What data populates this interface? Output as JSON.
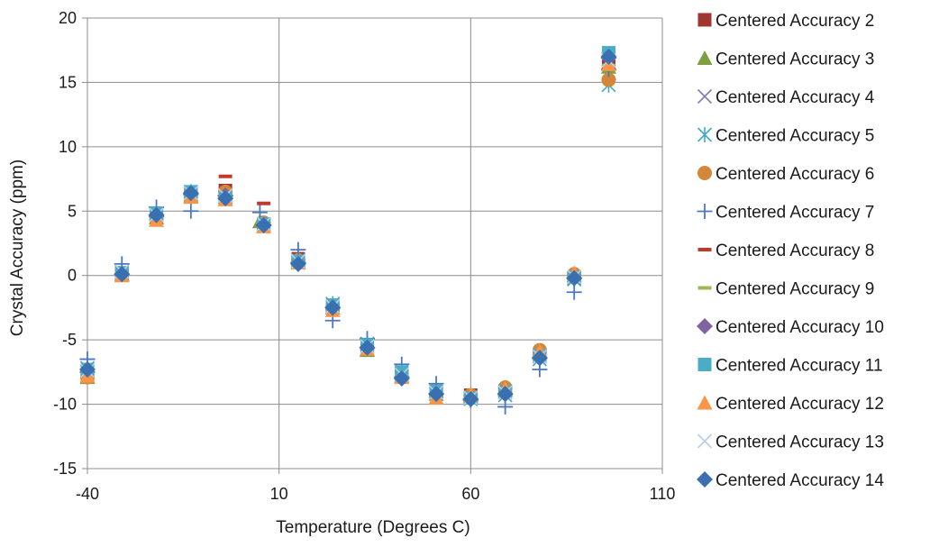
{
  "chart_data": {
    "type": "scatter",
    "xlabel": "Temperature (Degrees C)",
    "ylabel": "Crystal Accuracy (ppm)",
    "xlim": [
      -40,
      110
    ],
    "ylim": [
      -15,
      20
    ],
    "xticks": [
      -40,
      10,
      60,
      110
    ],
    "yticks": [
      -15,
      -10,
      -5,
      0,
      5,
      10,
      15,
      20
    ],
    "grid": "vertical and horizontal major gridlines",
    "legend_position": "right",
    "series": [
      {
        "name": "Centered Accuracy 2",
        "marker": "square",
        "color": "#a0362f",
        "x": [
          -40,
          -31,
          -22,
          -13,
          -4,
          6,
          15,
          24,
          33,
          42,
          51,
          60,
          69,
          78,
          87,
          96
        ],
        "y": [
          -7.8,
          0.2,
          4.5,
          6.3,
          6.6,
          4.0,
          1.3,
          -2.4,
          -5.5,
          -7.6,
          -9.0,
          -9.3,
          -9.0,
          -6.2,
          -0.1,
          16.5
        ]
      },
      {
        "name": "Centered Accuracy 3",
        "marker": "triangle",
        "color": "#7f9f3f",
        "x": [
          -40,
          -31,
          -22,
          -13,
          -4,
          5,
          15,
          24,
          33,
          42,
          51,
          60,
          69,
          78,
          87,
          96
        ],
        "y": [
          -7.9,
          0.1,
          4.5,
          6.2,
          6.4,
          4.2,
          1.1,
          -2.5,
          -5.8,
          -7.8,
          -9.2,
          -9.4,
          -8.9,
          -6.0,
          0.0,
          16.2
        ]
      },
      {
        "name": "Centered Accuracy 4",
        "marker": "x",
        "color": "#8877b5",
        "x": [
          -40,
          -31,
          -22,
          -13,
          -4,
          6,
          15,
          24,
          33,
          42,
          51,
          60,
          69,
          78,
          87,
          96
        ],
        "y": [
          -7.5,
          0.3,
          4.7,
          6.4,
          6.1,
          4.0,
          1.0,
          -2.4,
          -5.5,
          -7.7,
          -9.1,
          -9.5,
          -9.1,
          -6.3,
          -0.2,
          16.8
        ]
      },
      {
        "name": "Centered Accuracy 5",
        "marker": "asterisk",
        "color": "#44a8c4",
        "x": [
          -40,
          -31,
          -22,
          -13,
          -4,
          6,
          15,
          24,
          33,
          42,
          51,
          60,
          69,
          78,
          87,
          96
        ],
        "y": [
          -7.2,
          0.2,
          4.8,
          6.5,
          6.0,
          3.9,
          1.2,
          -2.2,
          -5.3,
          -7.4,
          -9.2,
          -9.6,
          -9.3,
          -6.5,
          -0.3,
          14.8
        ]
      },
      {
        "name": "Centered Accuracy 6",
        "marker": "circle",
        "color": "#d3873a",
        "x": [
          -40,
          -31,
          -22,
          -13,
          -4,
          6,
          15,
          24,
          33,
          42,
          51,
          60,
          69,
          78,
          87,
          96
        ],
        "y": [
          -7.9,
          0.1,
          4.4,
          6.2,
          6.5,
          4.1,
          1.2,
          -2.6,
          -5.7,
          -7.9,
          -9.4,
          -9.3,
          -8.7,
          -5.8,
          0.1,
          15.2
        ]
      },
      {
        "name": "Centered Accuracy 7",
        "marker": "plus",
        "color": "#4a78c4",
        "x": [
          -40,
          -31,
          -22,
          -13,
          -4,
          5,
          15,
          24,
          33,
          42,
          51,
          60,
          69,
          78,
          87,
          96
        ],
        "y": [
          -6.5,
          0.9,
          5.3,
          5.0,
          6.2,
          4.9,
          2.0,
          -3.5,
          -4.9,
          -6.9,
          -8.4,
          -9.7,
          -10.2,
          -7.3,
          -1.3,
          16.0
        ]
      },
      {
        "name": "Centered Accuracy 8",
        "marker": "dash",
        "color": "#c0392b",
        "x": [
          -40,
          -31,
          -22,
          -13,
          -4,
          6,
          15,
          24,
          33,
          42,
          51,
          60,
          69,
          78,
          87,
          96
        ],
        "y": [
          -7.6,
          0.4,
          4.9,
          6.6,
          7.7,
          5.6,
          1.4,
          -2.3,
          -5.4,
          -7.5,
          -9.0,
          -9.4,
          -9.0,
          -6.1,
          0.0,
          17.2
        ]
      },
      {
        "name": "Centered Accuracy 9",
        "marker": "dash",
        "color": "#9bbb59",
        "x": [
          -40,
          -31,
          -22,
          -13,
          -4,
          6,
          15,
          24,
          33,
          42,
          51,
          60,
          69,
          78,
          87,
          96
        ],
        "y": [
          -7.4,
          0.2,
          4.6,
          6.3,
          6.3,
          4.0,
          1.1,
          -2.5,
          -5.6,
          -7.7,
          -9.1,
          -9.5,
          -9.1,
          -6.3,
          -0.2,
          16.3
        ]
      },
      {
        "name": "Centered Accuracy 10",
        "marker": "diamond",
        "color": "#8064a2",
        "x": [
          -40,
          -31,
          -22,
          -13,
          -4,
          6,
          15,
          24,
          33,
          42,
          51,
          60,
          69,
          78,
          87,
          96
        ],
        "y": [
          -7.5,
          0.1,
          4.6,
          6.3,
          6.2,
          3.9,
          1.0,
          -2.5,
          -5.6,
          -7.9,
          -9.2,
          -9.6,
          -9.2,
          -6.4,
          -0.2,
          16.9
        ]
      },
      {
        "name": "Centered Accuracy 11",
        "marker": "square",
        "color": "#4bacc6",
        "x": [
          -40,
          -31,
          -22,
          -13,
          -4,
          6,
          15,
          24,
          33,
          42,
          51,
          60,
          69,
          78,
          87,
          96
        ],
        "y": [
          -7.3,
          0.2,
          4.8,
          6.5,
          6.0,
          4.0,
          1.1,
          -2.3,
          -5.4,
          -7.5,
          -9.0,
          -9.5,
          -9.0,
          -6.2,
          -0.1,
          17.3
        ]
      },
      {
        "name": "Centered Accuracy 12",
        "marker": "triangle",
        "color": "#f79646",
        "x": [
          -40,
          -31,
          -22,
          -13,
          -4,
          6,
          15,
          24,
          33,
          42,
          51,
          60,
          69,
          78,
          87,
          96
        ],
        "y": [
          -7.8,
          0.0,
          4.3,
          6.1,
          5.9,
          3.8,
          1.0,
          -2.7,
          -5.7,
          -7.9,
          -9.5,
          -9.3,
          -8.8,
          -5.9,
          0.2,
          16.4
        ]
      },
      {
        "name": "Centered Accuracy 13",
        "marker": "x",
        "color": "#b9cde5",
        "x": [
          -40,
          -31,
          -22,
          -13,
          -4,
          6,
          15,
          24,
          33,
          42,
          51,
          60,
          69,
          78,
          87,
          96
        ],
        "y": [
          -7.4,
          0.3,
          4.7,
          6.4,
          6.2,
          4.0,
          1.1,
          -2.4,
          -5.5,
          -7.7,
          -9.1,
          -9.5,
          -9.1,
          -6.3,
          -0.1,
          16.7
        ]
      },
      {
        "name": "Centered Accuracy 14",
        "marker": "diamond",
        "color": "#3a6fb0",
        "x": [
          -40,
          -31,
          -22,
          -13,
          -4,
          6,
          15,
          24,
          33,
          42,
          51,
          60,
          69,
          78,
          87,
          96
        ],
        "y": [
          -7.3,
          0.1,
          4.7,
          6.4,
          6.0,
          3.9,
          0.9,
          -2.5,
          -5.6,
          -8.0,
          -9.2,
          -9.6,
          -9.2,
          -6.4,
          -0.2,
          17.0
        ]
      }
    ]
  }
}
